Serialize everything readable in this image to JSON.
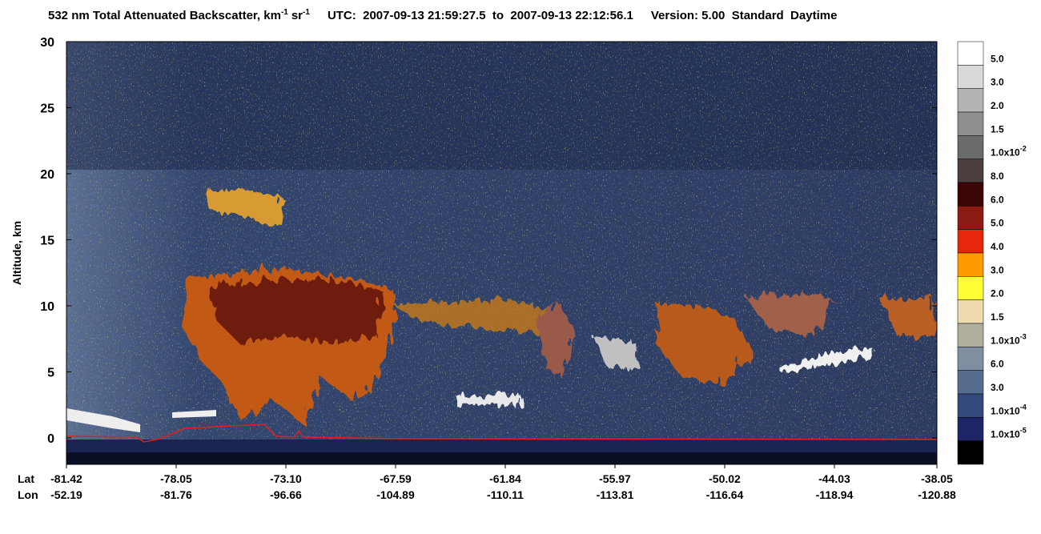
{
  "chart_data": {
    "type": "heatmap",
    "title": {
      "text1": "532 nm Total Attenuated Backscatter, km",
      "sup1": "-1",
      "text2": "sr",
      "sup2": "-1",
      "utc": "UTC:  2007-09-13 21:59:27.5  to  2007-09-13 22:12:56.1",
      "version": "Version: 5.00  Standard  Daytime"
    },
    "y_label": "Altitude, km",
    "ylim": [
      -2,
      30
    ],
    "yticks": [
      0,
      5,
      10,
      15,
      20,
      25,
      30
    ],
    "x_row_labels": [
      "Lat",
      "Lon"
    ],
    "lat": [
      "-81.42",
      "-78.05",
      "-73.10",
      "-67.59",
      "-61.84",
      "-55.97",
      "-50.02",
      "-44.03",
      "-38.05"
    ],
    "lon": [
      "-52.19",
      "-81.76",
      "-96.66",
      "-104.89",
      "-110.11",
      "-113.81",
      "-116.64",
      "-118.94",
      "-120.88"
    ],
    "colorbar": {
      "colors": [
        "#ffffff",
        "#d9d9d9",
        "#b4b4b4",
        "#8f8f8f",
        "#6a6a6a",
        "#4a3e3e",
        "#3a0505",
        "#8a1a12",
        "#e8260e",
        "#ff9a00",
        "#ffff33",
        "#eedcb0",
        "#b0ae9e",
        "#7f8ea0",
        "#566c8e",
        "#33497e",
        "#1f2466",
        "#000000"
      ],
      "labels": [
        "5.0",
        "3.0",
        "2.0",
        "1.5",
        {
          "base": "1.0x10",
          "exp": "-2"
        },
        "8.0",
        "6.0",
        "5.0",
        "4.0",
        "3.0",
        "2.0",
        "1.5",
        {
          "base": "1.0x10",
          "exp": "-3"
        },
        "6.0",
        "3.0",
        {
          "base": "1.0x10",
          "exp": "-4"
        },
        {
          "base": "1.0x10",
          "exp": "-5"
        }
      ]
    }
  }
}
